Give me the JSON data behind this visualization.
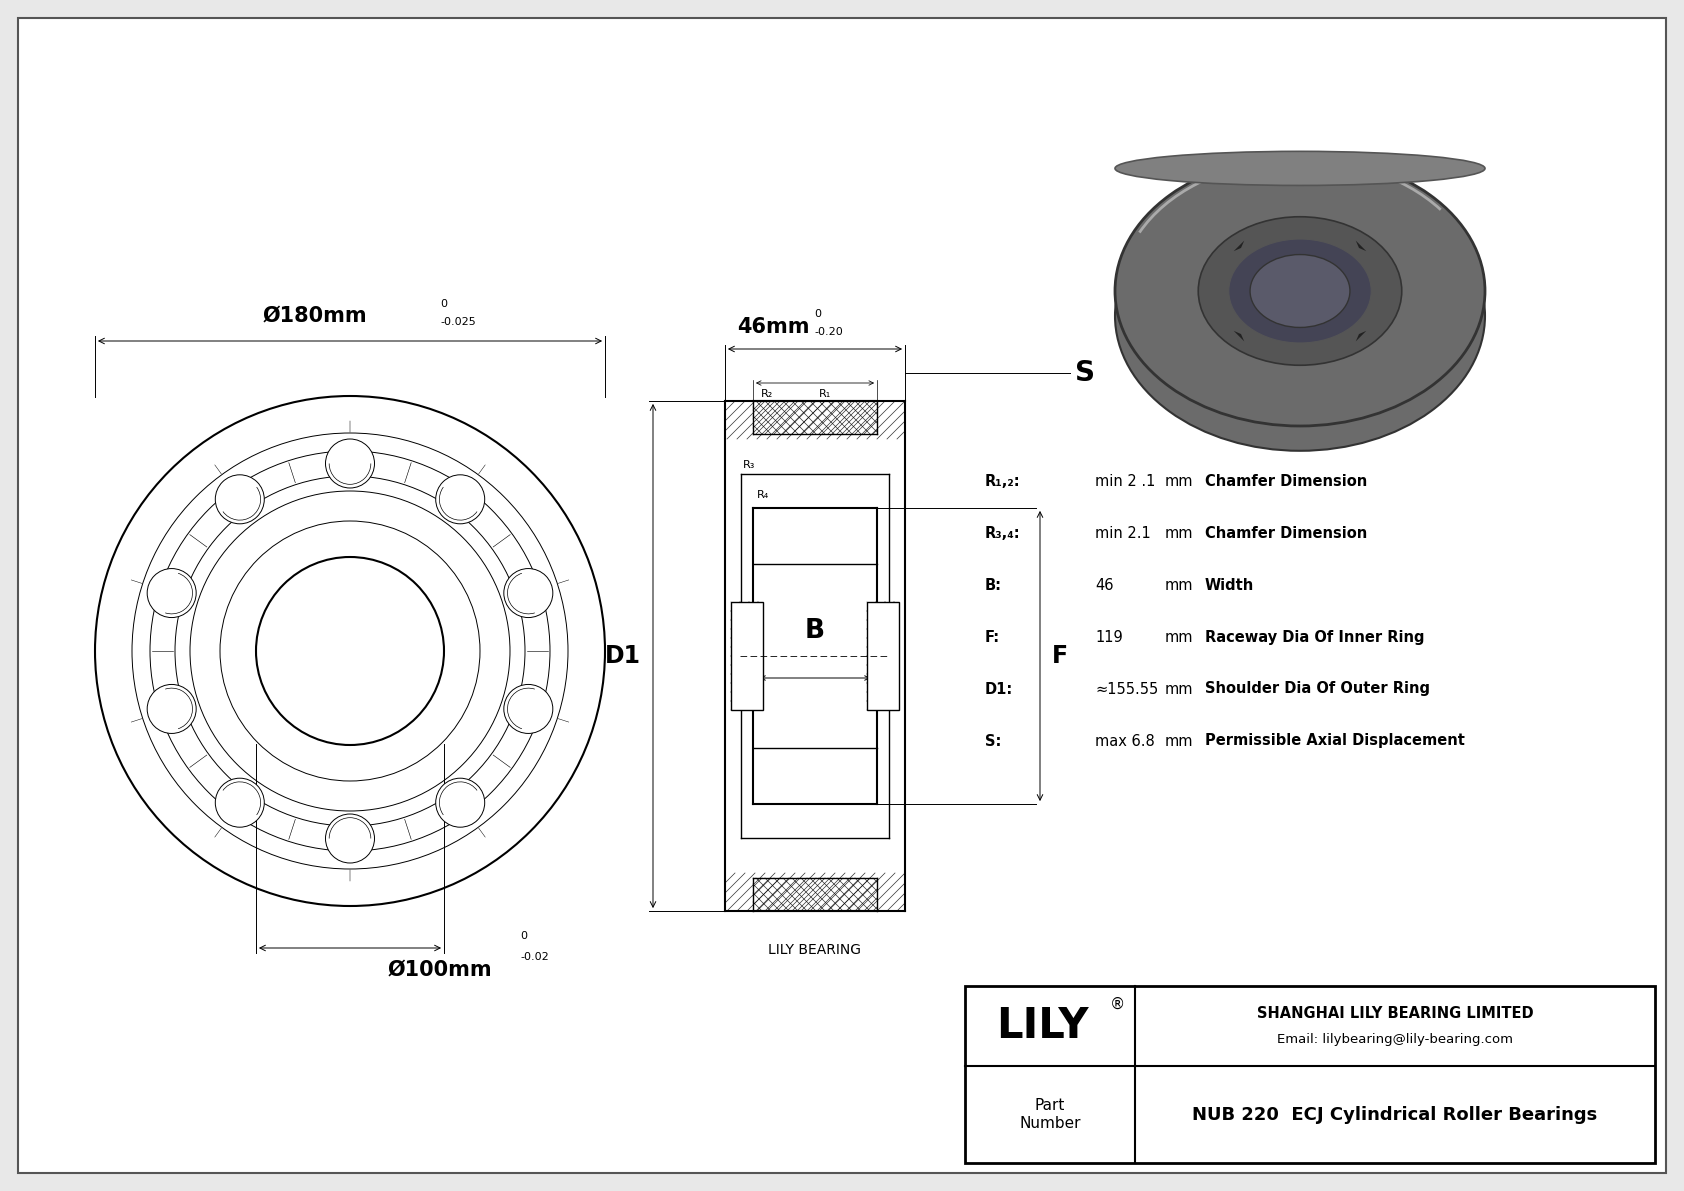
{
  "bg_color": "#e8e8e8",
  "drawing_bg": "#ffffff",
  "line_color": "#000000",
  "title_company": "SHANGHAI LILY BEARING LIMITED",
  "title_email": "Email: lilybearing@lily-bearing.com",
  "part_label": "Part\nNumber",
  "part_number": "NUB 220  ECJ Cylindrical Roller Bearings",
  "lily_brand": "LILY",
  "watermark": "LILY BEARING",
  "dim_od_main": "Ø180mm",
  "dim_id_main": "Ø100mm",
  "dim_w_main": "46mm",
  "label_S": "S",
  "label_D1": "D1",
  "label_B": "B",
  "label_F": "F",
  "label_R1": "R₁",
  "label_R2": "R₂",
  "label_R3": "R₃",
  "label_R4": "R₄",
  "spec_rows": [
    [
      "R₁,₂:",
      "min 2 .1",
      "mm",
      "Chamfer Dimension"
    ],
    [
      "R₃,₄:",
      "min 2.1",
      "mm",
      "Chamfer Dimension"
    ],
    [
      "B:",
      "46",
      "mm",
      "Width"
    ],
    [
      "F:",
      "119",
      "mm",
      "Raceway Dia Of Inner Ring"
    ],
    [
      "D1:",
      "≈155.55",
      "mm",
      "Shoulder Dia Of Outer Ring"
    ],
    [
      "S:",
      "max 6.8",
      "mm",
      "Permissible Axial Displacement"
    ]
  ],
  "photo_color_outer": "#6b6b6b",
  "photo_color_mid": "#555555",
  "photo_color_inner": "#444455",
  "photo_color_bore": "#5a5a6a",
  "photo_color_dark": "#333333"
}
